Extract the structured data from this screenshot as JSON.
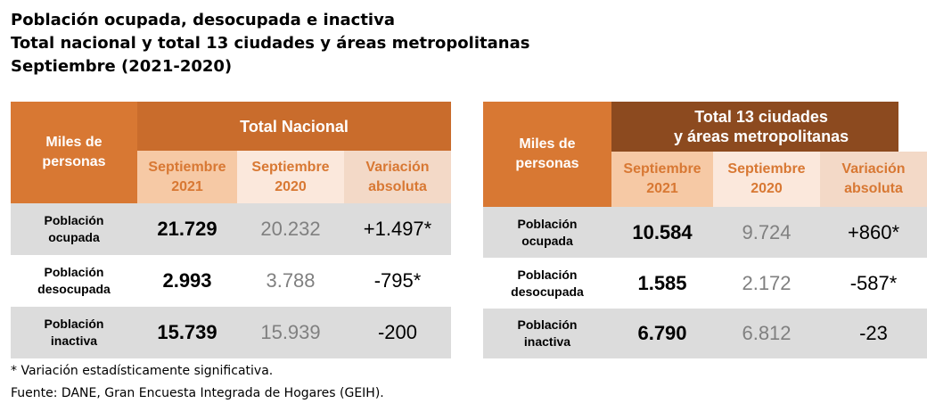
{
  "title": {
    "line1": "Población ocupada, desocupada e inactiva",
    "line2": "Total nacional y total 13 ciudades y áreas metropolitanas",
    "line3": "Septiembre (2021-2020)"
  },
  "colors": {
    "orange": "#d87833",
    "dark_brown": "#8c4a1f",
    "row_gray": "#dcdcdc"
  },
  "tables": [
    {
      "corner_label": "Miles de personas",
      "group_header": "Total Nacional",
      "columns": [
        "Septiembre 2021",
        "Septiembre 2020",
        "Variación absoluta"
      ],
      "rows": [
        {
          "label": "Población ocupada",
          "v2021": "21.729",
          "v2020": "20.232",
          "var": "+1.497*"
        },
        {
          "label": "Población desocupada",
          "v2021": "2.993",
          "v2020": "3.788",
          "var": "-795*"
        },
        {
          "label": "Población inactiva",
          "v2021": "15.739",
          "v2020": "15.939",
          "var": "-200"
        }
      ]
    },
    {
      "corner_label": "Miles de personas",
      "group_header": "Total 13 ciudades\ny áreas metropolitanas",
      "columns": [
        "Septiembre 2021",
        "Septiembre 2020",
        "Variación absoluta"
      ],
      "rows": [
        {
          "label": "Población ocupada",
          "v2021": "10.584",
          "v2020": "9.724",
          "var": "+860*"
        },
        {
          "label": "Población desocupada",
          "v2021": "1.585",
          "v2020": "2.172",
          "var": "-587*"
        },
        {
          "label": "Población inactiva",
          "v2021": "6.790",
          "v2020": "6.812",
          "var": "-23"
        }
      ]
    }
  ],
  "footnotes": {
    "note": "* Variación estadísticamente significativa.",
    "source": "Fuente: DANE, Gran Encuesta Integrada de Hogares (GEIH)."
  }
}
